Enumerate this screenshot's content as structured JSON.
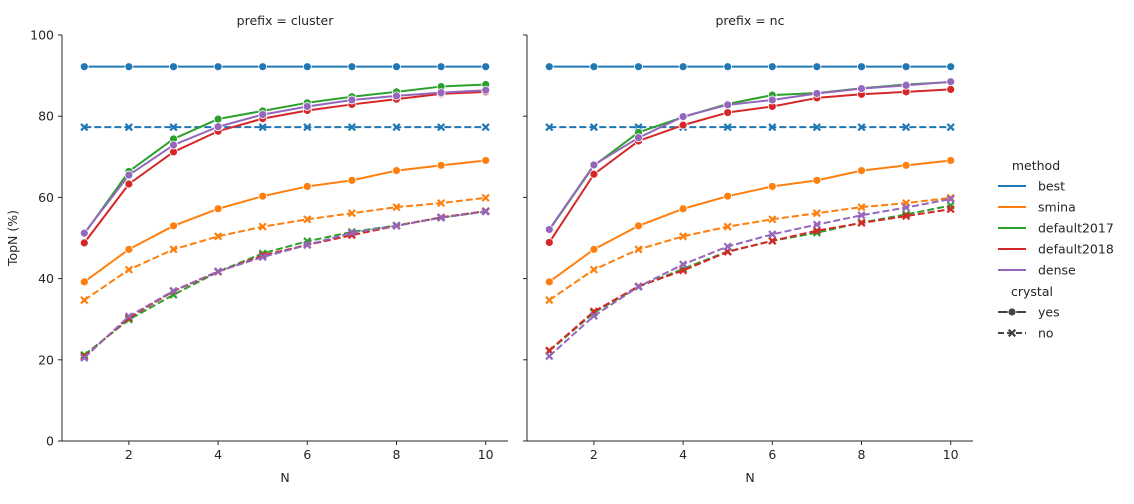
{
  "chart_data": {
    "type": "line",
    "ylabel": "TopN (%)",
    "xlabel": "N",
    "ylim": [
      0,
      100
    ],
    "xlim": [
      0.5,
      10.5
    ],
    "xticks": [
      2,
      4,
      6,
      8,
      10
    ],
    "yticks": [
      0,
      20,
      40,
      60,
      80,
      100
    ],
    "x": [
      1,
      2,
      3,
      4,
      5,
      6,
      7,
      8,
      9,
      10
    ],
    "legend": {
      "placement": "right",
      "hue_title": "method",
      "style_title": "crystal",
      "methods": [
        {
          "name": "best",
          "color": "#1f77b4"
        },
        {
          "name": "smina",
          "color": "#ff7f0e"
        },
        {
          "name": "default2017",
          "color": "#2ca02c"
        },
        {
          "name": "default2018",
          "color": "#d62728"
        },
        {
          "name": "dense",
          "color": "#9467bd"
        }
      ],
      "styles": [
        {
          "name": "yes",
          "marker": "circle",
          "dash": "solid"
        },
        {
          "name": "no",
          "marker": "x",
          "dash": "dashed"
        }
      ]
    },
    "panels": [
      {
        "title": "prefix = cluster",
        "series": [
          {
            "method": "best",
            "crystal": "yes",
            "values": [
              92.2,
              92.2,
              92.2,
              92.2,
              92.2,
              92.2,
              92.2,
              92.2,
              92.2,
              92.2
            ]
          },
          {
            "method": "best",
            "crystal": "no",
            "values": [
              77.3,
              77.3,
              77.3,
              77.3,
              77.3,
              77.3,
              77.3,
              77.3,
              77.3,
              77.3
            ]
          },
          {
            "method": "smina",
            "crystal": "yes",
            "values": [
              39.2,
              47.2,
              53.0,
              57.2,
              60.3,
              62.7,
              64.2,
              66.6,
              67.9,
              69.1
            ]
          },
          {
            "method": "smina",
            "crystal": "no",
            "values": [
              34.7,
              42.2,
              47.2,
              50.4,
              52.8,
              54.6,
              56.1,
              57.6,
              58.6,
              59.9
            ]
          },
          {
            "method": "default2017",
            "crystal": "yes",
            "values": [
              51.0,
              66.4,
              74.4,
              79.3,
              81.3,
              83.3,
              84.8,
              86.0,
              87.3,
              87.8
            ]
          },
          {
            "method": "default2017",
            "crystal": "no",
            "values": [
              21.2,
              29.9,
              36.0,
              41.7,
              46.2,
              49.2,
              51.5,
              53.1,
              55.0,
              56.6
            ]
          },
          {
            "method": "default2018",
            "crystal": "yes",
            "values": [
              48.8,
              63.3,
              71.2,
              76.3,
              79.4,
              81.4,
              82.9,
              84.2,
              85.5,
              86.0
            ]
          },
          {
            "method": "default2018",
            "crystal": "no",
            "values": [
              20.8,
              30.3,
              36.9,
              41.7,
              45.7,
              48.3,
              50.7,
              53.0,
              55.1,
              56.6
            ]
          },
          {
            "method": "dense",
            "crystal": "yes",
            "values": [
              51.2,
              65.5,
              72.9,
              77.4,
              80.4,
              82.4,
              84.0,
              85.0,
              85.8,
              86.4
            ]
          },
          {
            "method": "dense",
            "crystal": "no",
            "values": [
              20.5,
              30.7,
              37.0,
              41.8,
              45.3,
              48.3,
              51.3,
              53.0,
              55.0,
              56.5
            ]
          }
        ]
      },
      {
        "title": "prefix = nc",
        "series": [
          {
            "method": "best",
            "crystal": "yes",
            "values": [
              92.2,
              92.2,
              92.2,
              92.2,
              92.2,
              92.2,
              92.2,
              92.2,
              92.2,
              92.2
            ]
          },
          {
            "method": "best",
            "crystal": "no",
            "values": [
              77.3,
              77.3,
              77.3,
              77.3,
              77.3,
              77.3,
              77.3,
              77.3,
              77.3,
              77.3
            ]
          },
          {
            "method": "smina",
            "crystal": "yes",
            "values": [
              39.2,
              47.2,
              53.0,
              57.2,
              60.3,
              62.7,
              64.2,
              66.6,
              67.9,
              69.1
            ]
          },
          {
            "method": "smina",
            "crystal": "no",
            "values": [
              34.7,
              42.2,
              47.2,
              50.4,
              52.8,
              54.6,
              56.1,
              57.6,
              58.6,
              59.9
            ]
          },
          {
            "method": "default2017",
            "crystal": "yes",
            "values": [
              52.0,
              67.8,
              76.0,
              79.8,
              83.0,
              85.2,
              85.7,
              86.9,
              87.8,
              88.4
            ]
          },
          {
            "method": "default2017",
            "crystal": "no",
            "values": [
              22.2,
              31.6,
              38.0,
              42.4,
              46.7,
              49.3,
              51.3,
              53.8,
              55.8,
              58.0
            ]
          },
          {
            "method": "default2018",
            "crystal": "yes",
            "values": [
              48.9,
              65.7,
              73.9,
              77.8,
              80.9,
              82.4,
              84.5,
              85.4,
              86.0,
              86.6
            ]
          },
          {
            "method": "default2018",
            "crystal": "no",
            "values": [
              22.3,
              31.9,
              38.1,
              42.0,
              46.6,
              49.3,
              51.8,
              53.7,
              55.4,
              57.1
            ]
          },
          {
            "method": "dense",
            "crystal": "yes",
            "values": [
              52.1,
              68.0,
              74.7,
              79.9,
              82.8,
              84.0,
              85.6,
              86.8,
              87.6,
              88.5
            ]
          },
          {
            "method": "dense",
            "crystal": "no",
            "values": [
              20.9,
              30.8,
              38.0,
              43.5,
              47.9,
              50.9,
              53.3,
              55.6,
              57.5,
              59.6
            ]
          }
        ]
      }
    ]
  }
}
